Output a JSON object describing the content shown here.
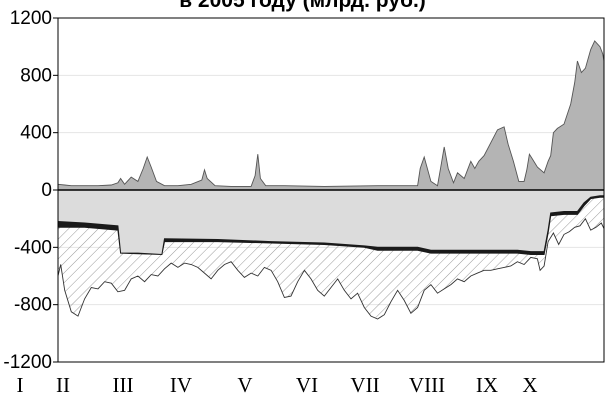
{
  "title": "в 2005 году (млрд. руб.)",
  "chart_data": {
    "type": "area",
    "title": "в 2005 году (млрд. руб.)",
    "xlabel": "",
    "ylabel": "",
    "ylim": [
      -1200,
      1200
    ],
    "yticks": [
      1200,
      800,
      400,
      0,
      -400,
      -800,
      -1200
    ],
    "ytick_labels": [
      "1200",
      "800",
      "400",
      "0",
      "-400",
      "-800",
      "-1200"
    ],
    "months": [
      "I",
      "II",
      "III",
      "IV",
      "V",
      "VI",
      "VII",
      "VIII",
      "IX",
      "X"
    ],
    "series": [
      {
        "style": "grey area above zero",
        "color": "#b4b4b4",
        "points": [
          [
            0,
            40
          ],
          [
            5,
            35
          ],
          [
            10,
            30
          ],
          [
            20,
            30
          ],
          [
            30,
            30
          ],
          [
            40,
            35
          ],
          [
            45,
            50
          ],
          [
            47,
            80
          ],
          [
            50,
            40
          ],
          [
            55,
            90
          ],
          [
            60,
            60
          ],
          [
            64,
            150
          ],
          [
            67,
            230
          ],
          [
            70,
            160
          ],
          [
            74,
            60
          ],
          [
            80,
            30
          ],
          [
            90,
            30
          ],
          [
            100,
            40
          ],
          [
            108,
            70
          ],
          [
            110,
            140
          ],
          [
            112,
            80
          ],
          [
            118,
            30
          ],
          [
            130,
            25
          ],
          [
            145,
            25
          ],
          [
            148,
            100
          ],
          [
            150,
            250
          ],
          [
            152,
            80
          ],
          [
            156,
            30
          ],
          [
            170,
            30
          ],
          [
            200,
            25
          ],
          [
            240,
            30
          ],
          [
            270,
            30
          ],
          [
            272,
            150
          ],
          [
            275,
            230
          ],
          [
            280,
            60
          ],
          [
            285,
            30
          ],
          [
            288,
            190
          ],
          [
            290,
            300
          ],
          [
            293,
            150
          ],
          [
            297,
            50
          ],
          [
            300,
            120
          ],
          [
            305,
            80
          ],
          [
            310,
            200
          ],
          [
            313,
            150
          ],
          [
            316,
            200
          ],
          [
            320,
            240
          ],
          [
            325,
            330
          ],
          [
            330,
            420
          ],
          [
            335,
            440
          ],
          [
            338,
            320
          ],
          [
            342,
            200
          ],
          [
            346,
            60
          ],
          [
            350,
            60
          ],
          [
            352,
            140
          ],
          [
            354,
            250
          ],
          [
            356,
            220
          ],
          [
            360,
            160
          ],
          [
            365,
            120
          ],
          [
            368,
            200
          ],
          [
            370,
            240
          ],
          [
            372,
            400
          ],
          [
            375,
            430
          ],
          [
            380,
            460
          ],
          [
            385,
            600
          ],
          [
            388,
            750
          ],
          [
            390,
            900
          ],
          [
            393,
            820
          ],
          [
            396,
            850
          ],
          [
            400,
            980
          ],
          [
            403,
            1040
          ],
          [
            407,
            1000
          ],
          [
            409,
            950
          ],
          [
            410,
            900
          ]
        ]
      },
      {
        "style": "light grey band between zero and threshold line",
        "color": "#dcdcdc",
        "points": [
          [
            0,
            -220
          ],
          [
            20,
            -230
          ],
          [
            45,
            -250
          ],
          [
            47,
            -440
          ],
          [
            60,
            -440
          ],
          [
            78,
            -450
          ],
          [
            80,
            -340
          ],
          [
            120,
            -345
          ],
          [
            160,
            -360
          ],
          [
            200,
            -370
          ],
          [
            230,
            -390
          ],
          [
            240,
            -400
          ],
          [
            270,
            -400
          ],
          [
            280,
            -420
          ],
          [
            320,
            -420
          ],
          [
            345,
            -420
          ],
          [
            355,
            -430
          ],
          [
            365,
            -430
          ],
          [
            368,
            -280
          ],
          [
            370,
            -160
          ],
          [
            380,
            -150
          ],
          [
            390,
            -150
          ],
          [
            395,
            -90
          ],
          [
            400,
            -50
          ],
          [
            407,
            -40
          ],
          [
            410,
            -40
          ]
        ]
      },
      {
        "style": "black band (threshold line)",
        "color": "#1a1a1a",
        "points": [
          [
            0,
            -260
          ],
          [
            20,
            -260
          ],
          [
            45,
            -280
          ],
          [
            47,
            -440
          ],
          [
            78,
            -450
          ],
          [
            80,
            -360
          ],
          [
            120,
            -360
          ],
          [
            160,
            -370
          ],
          [
            200,
            -380
          ],
          [
            230,
            -400
          ],
          [
            240,
            -420
          ],
          [
            270,
            -420
          ],
          [
            280,
            -440
          ],
          [
            345,
            -440
          ],
          [
            355,
            -450
          ],
          [
            365,
            -450
          ],
          [
            368,
            -300
          ],
          [
            370,
            -180
          ],
          [
            380,
            -170
          ],
          [
            390,
            -170
          ],
          [
            395,
            -110
          ],
          [
            400,
            -60
          ],
          [
            407,
            -50
          ],
          [
            410,
            -50
          ]
        ]
      },
      {
        "style": "hatched area below threshold, outlined by irregular line",
        "color": "#000000",
        "points": [
          [
            0,
            -600
          ],
          [
            2,
            -520
          ],
          [
            5,
            -700
          ],
          [
            10,
            -850
          ],
          [
            15,
            -880
          ],
          [
            20,
            -760
          ],
          [
            25,
            -680
          ],
          [
            30,
            -690
          ],
          [
            35,
            -640
          ],
          [
            40,
            -650
          ],
          [
            45,
            -710
          ],
          [
            50,
            -700
          ],
          [
            55,
            -620
          ],
          [
            60,
            -600
          ],
          [
            65,
            -640
          ],
          [
            70,
            -590
          ],
          [
            75,
            -600
          ],
          [
            80,
            -550
          ],
          [
            85,
            -510
          ],
          [
            90,
            -540
          ],
          [
            95,
            -510
          ],
          [
            100,
            -520
          ],
          [
            105,
            -540
          ],
          [
            110,
            -580
          ],
          [
            115,
            -620
          ],
          [
            120,
            -560
          ],
          [
            125,
            -520
          ],
          [
            130,
            -500
          ],
          [
            135,
            -560
          ],
          [
            140,
            -610
          ],
          [
            145,
            -580
          ],
          [
            150,
            -600
          ],
          [
            155,
            -540
          ],
          [
            160,
            -560
          ],
          [
            165,
            -640
          ],
          [
            170,
            -750
          ],
          [
            175,
            -740
          ],
          [
            180,
            -640
          ],
          [
            185,
            -560
          ],
          [
            190,
            -620
          ],
          [
            195,
            -700
          ],
          [
            200,
            -740
          ],
          [
            205,
            -680
          ],
          [
            210,
            -620
          ],
          [
            215,
            -700
          ],
          [
            220,
            -760
          ],
          [
            225,
            -720
          ],
          [
            230,
            -820
          ],
          [
            235,
            -880
          ],
          [
            240,
            -900
          ],
          [
            245,
            -870
          ],
          [
            250,
            -780
          ],
          [
            255,
            -700
          ],
          [
            260,
            -770
          ],
          [
            265,
            -860
          ],
          [
            270,
            -820
          ],
          [
            275,
            -700
          ],
          [
            280,
            -660
          ],
          [
            285,
            -720
          ],
          [
            290,
            -690
          ],
          [
            295,
            -660
          ],
          [
            300,
            -620
          ],
          [
            305,
            -640
          ],
          [
            310,
            -600
          ],
          [
            315,
            -580
          ],
          [
            320,
            -560
          ],
          [
            325,
            -560
          ],
          [
            330,
            -550
          ],
          [
            335,
            -540
          ],
          [
            340,
            -530
          ],
          [
            345,
            -500
          ],
          [
            350,
            -520
          ],
          [
            355,
            -470
          ],
          [
            360,
            -480
          ],
          [
            362,
            -560
          ],
          [
            365,
            -530
          ],
          [
            368,
            -360
          ],
          [
            372,
            -300
          ],
          [
            376,
            -380
          ],
          [
            380,
            -310
          ],
          [
            384,
            -290
          ],
          [
            388,
            -260
          ],
          [
            392,
            -250
          ],
          [
            396,
            -200
          ],
          [
            400,
            -280
          ],
          [
            404,
            -260
          ],
          [
            408,
            -230
          ],
          [
            410,
            -270
          ]
        ]
      }
    ]
  }
}
